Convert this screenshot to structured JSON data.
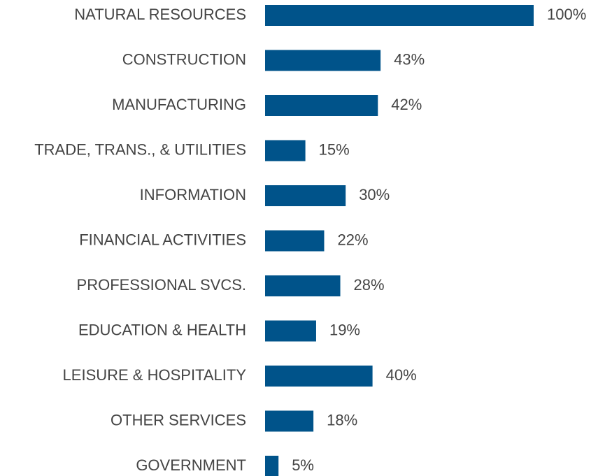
{
  "chart_data": {
    "type": "hbar",
    "categories": [
      "NATURAL RESOURCES",
      "CONSTRUCTION",
      "MANUFACTURING",
      "TRADE, TRANS., & UTILITIES",
      "INFORMATION",
      "FINANCIAL ACTIVITIES",
      "PROFESSIONAL SVCS.",
      "EDUCATION & HEALTH",
      "LEISURE & HOSPITALITY",
      "OTHER SERVICES",
      "GOVERNMENT"
    ],
    "values": [
      100,
      43,
      42,
      15,
      30,
      22,
      28,
      19,
      40,
      18,
      5
    ],
    "value_labels": [
      "100%",
      "43%",
      "42%",
      "15%",
      "30%",
      "22%",
      "28%",
      "19%",
      "40%",
      "18%",
      "5%"
    ],
    "color": "#00538a"
  }
}
